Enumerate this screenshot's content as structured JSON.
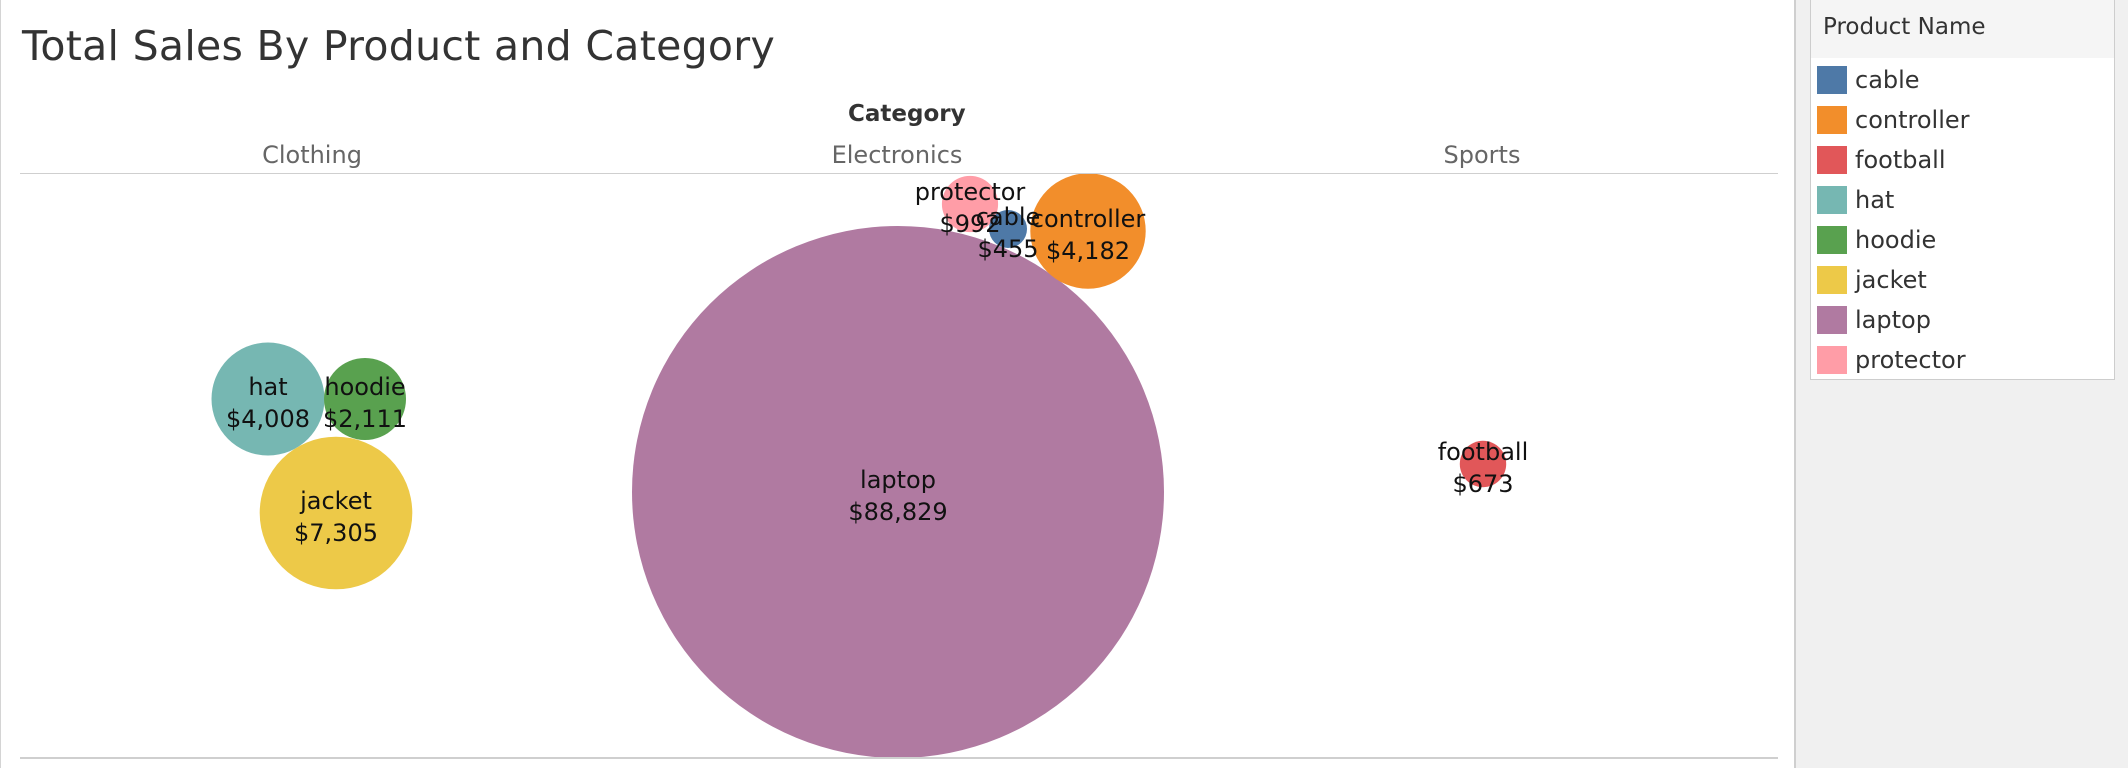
{
  "chart_data": {
    "type": "bubble",
    "title": "Total Sales By Product and Category",
    "column_header_label": "Category",
    "categories": [
      "Clothing",
      "Electronics",
      "Sports"
    ],
    "legend_title": "Product Name",
    "legend_placement": "right",
    "series": [
      {
        "name": "cable",
        "category": "Electronics",
        "value": 455,
        "label": "$455",
        "color": "#4e79a7"
      },
      {
        "name": "controller",
        "category": "Electronics",
        "value": 4182,
        "label": "$4,182",
        "color": "#f28e2b"
      },
      {
        "name": "football",
        "category": "Sports",
        "value": 673,
        "label": "$673",
        "color": "#e15759"
      },
      {
        "name": "hat",
        "category": "Clothing",
        "value": 4008,
        "label": "$4,008",
        "color": "#76b7b2"
      },
      {
        "name": "hoodie",
        "category": "Clothing",
        "value": 2111,
        "label": "$2,111",
        "color": "#59a14f"
      },
      {
        "name": "jacket",
        "category": "Clothing",
        "value": 7305,
        "label": "$7,305",
        "color": "#edc948"
      },
      {
        "name": "laptop",
        "category": "Electronics",
        "value": 88829,
        "label": "$88,829",
        "color": "#b07aa1"
      },
      {
        "name": "protector",
        "category": "Electronics",
        "value": 992,
        "label": "$992",
        "color": "#ff9da7"
      }
    ]
  }
}
